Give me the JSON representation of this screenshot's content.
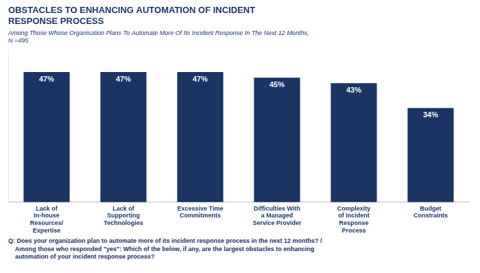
{
  "chart_data": {
    "type": "bar",
    "title": "OBSTACLES TO ENHANCING AUTOMATION OF INCIDENT\nRESPONSE PROCESS",
    "subtitle": "Among Those Whose Organisation Plans To Automate More Of Its Incident Response In The Next 12 Months,\nN =495",
    "footnote": "Q: Does your organization plan to automate more of its incident response process in the next 12 months? /\n    Among those who responded \"yes\": Which of the below, if any, are the largest obstacles to enhancing\n    automation of your incident response process?",
    "categories": [
      "Lack of\nIn-house\nResources/\nExpertise",
      "Lack of\nSupporting\nTechnologies",
      "Excessive Time\nCommitments",
      "Difficulties With\na Managed\nService Provider",
      "Complexity\nof Incident\nResponse\nProcess",
      "Budget\nConstraints"
    ],
    "values": [
      47,
      47,
      47,
      45,
      43,
      34
    ],
    "value_labels": [
      "47%",
      "47%",
      "47%",
      "45%",
      "43%",
      "34%"
    ],
    "color": "#1a3464",
    "ylim": [
      0,
      55
    ],
    "grid": false,
    "data_labels": true,
    "tick_labels": "x"
  }
}
